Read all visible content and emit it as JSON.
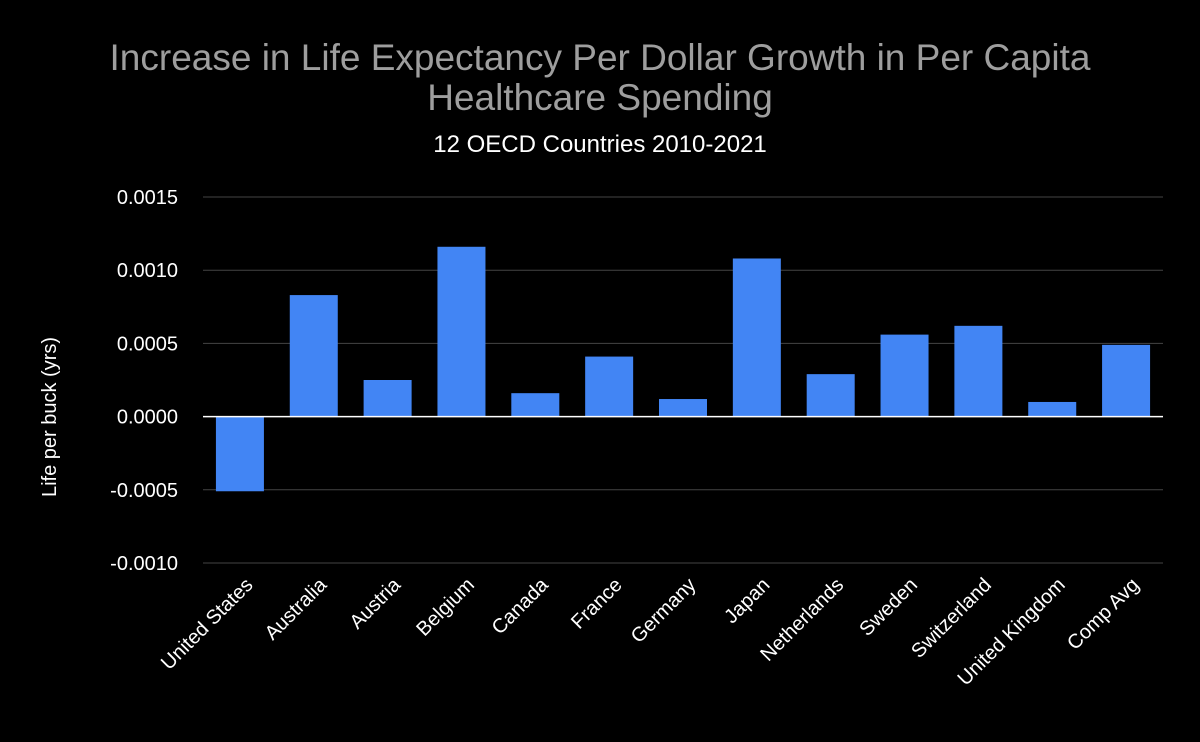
{
  "chart_data": {
    "type": "bar",
    "title_lines": [
      "Increase in Life Expectancy Per Dollar Growth in Per Capita",
      "Healthcare Spending"
    ],
    "subtitle": "12 OECD Countries 2010-2021",
    "xlabel": "",
    "ylabel": "Life per buck (yrs)",
    "categories": [
      "United States",
      "Australia",
      "Austria",
      "Belgium",
      "Canada",
      "France",
      "Germany",
      "Japan",
      "Netherlands",
      "Sweden",
      "Switzerland",
      "United Kingdom",
      "Comp Avg"
    ],
    "values": [
      -0.00051,
      0.00083,
      0.00025,
      0.00116,
      0.00016,
      0.00041,
      0.00012,
      0.00108,
      0.00029,
      0.00056,
      0.00062,
      0.0001,
      0.00049
    ],
    "ylim": [
      -0.001,
      0.0015
    ],
    "yticks": [
      0.0015,
      0.001,
      0.0005,
      0.0,
      -0.0005,
      -0.001
    ],
    "ytick_labels": [
      "0.0015",
      "0.0010",
      "0.0005",
      "0.0000",
      "-0.0005",
      "-0.0010"
    ],
    "grid": true,
    "legend": "none",
    "bar_color": "#4285f4",
    "background_color": "#000000",
    "text_color": "#ffffff",
    "title_color": "#9e9e9e",
    "grid_color": "#444444",
    "zero_line_color": "#ffffff"
  }
}
